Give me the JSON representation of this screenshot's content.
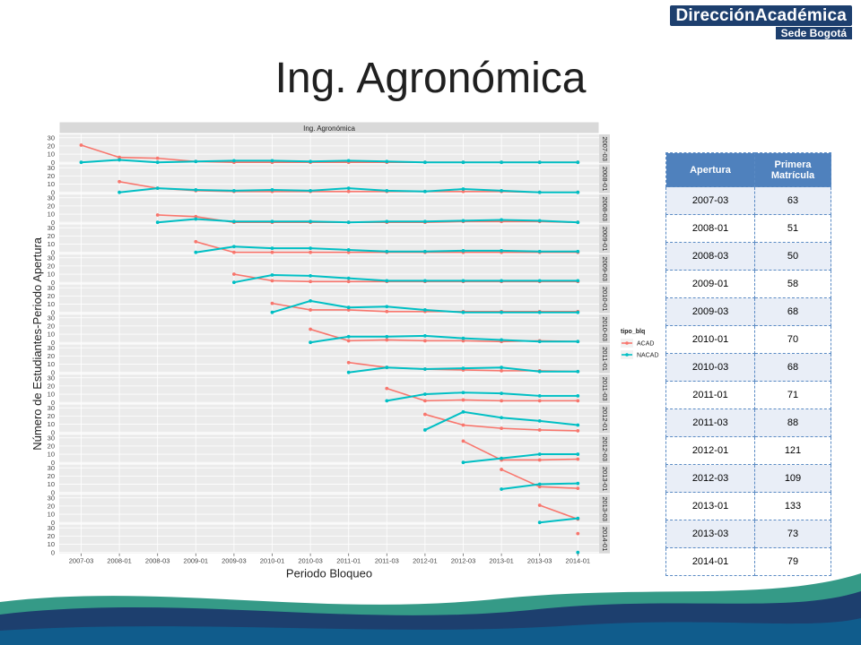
{
  "brand": {
    "name": "DirecciónAcadémica",
    "sub": "Sede Bogotá"
  },
  "slide_title": "Ing. Agronómica",
  "table": {
    "headers": [
      "Apertura",
      "Primera Matrícula"
    ],
    "rows": [
      [
        "2007-03",
        "63"
      ],
      [
        "2008-01",
        "51"
      ],
      [
        "2008-03",
        "50"
      ],
      [
        "2009-01",
        "58"
      ],
      [
        "2009-03",
        "68"
      ],
      [
        "2010-01",
        "70"
      ],
      [
        "2010-03",
        "68"
      ],
      [
        "2011-01",
        "71"
      ],
      [
        "2011-03",
        "88"
      ],
      [
        "2012-01",
        "121"
      ],
      [
        "2012-03",
        "109"
      ],
      [
        "2013-01",
        "133"
      ],
      [
        "2013-03",
        "73"
      ],
      [
        "2014-01",
        "79"
      ]
    ]
  },
  "colors": {
    "acad": "#f8766d",
    "nacad": "#00bfc4",
    "header": "#4f81bd",
    "brand": "#1d3f6e"
  },
  "chart_data": {
    "type": "line",
    "title": "Ing. Agronómica",
    "xlabel": "Periodo Bloqueo",
    "ylabel": "Número de Estudiantes-Periodo Apertura",
    "x": [
      "2007-03",
      "2008-01",
      "2008-03",
      "2009-01",
      "2009-03",
      "2010-01",
      "2010-03",
      "2011-01",
      "2011-03",
      "2012-01",
      "2012-03",
      "2013-01",
      "2013-03",
      "2014-01"
    ],
    "yticks": [
      0,
      10,
      20,
      30
    ],
    "ylim": [
      0,
      33
    ],
    "legend": {
      "title": "tipo_blq",
      "entries": [
        "ACAD",
        "NACAD"
      ],
      "placement": "right"
    },
    "grid": true,
    "panels": [
      {
        "label": "2007-03",
        "start": 0,
        "ACAD": [
          21,
          6,
          5,
          1,
          0,
          0,
          0,
          0,
          0,
          0,
          0,
          0,
          0,
          0
        ],
        "NACAD": [
          0,
          3,
          0,
          1,
          2,
          2,
          1,
          2,
          1,
          0,
          0,
          0,
          0,
          0
        ]
      },
      {
        "label": "2008-01",
        "start": 1,
        "ACAD": [
          13,
          5,
          2,
          1,
          1,
          1,
          1,
          1,
          1,
          1,
          1,
          0,
          0
        ],
        "NACAD": [
          0,
          5,
          3,
          2,
          3,
          2,
          5,
          2,
          1,
          4,
          2,
          0,
          0
        ]
      },
      {
        "label": "2008-03",
        "start": 2,
        "ACAD": [
          9,
          7,
          0,
          0,
          0,
          0,
          0,
          0,
          1,
          1,
          1,
          0
        ],
        "NACAD": [
          0,
          4,
          1,
          1,
          1,
          0,
          1,
          1,
          2,
          3,
          2,
          0
        ]
      },
      {
        "label": "2009-01",
        "start": 3,
        "ACAD": [
          13,
          0,
          0,
          0,
          0,
          0,
          0,
          0,
          0,
          0,
          0
        ],
        "NACAD": [
          0,
          7,
          5,
          5,
          3,
          1,
          1,
          2,
          2,
          1,
          1
        ]
      },
      {
        "label": "2009-03",
        "start": 4,
        "ACAD": [
          10,
          2,
          1,
          1,
          1,
          1,
          1,
          1,
          1,
          1
        ],
        "NACAD": [
          0,
          9,
          8,
          5,
          2,
          2,
          2,
          2,
          2,
          2
        ]
      },
      {
        "label": "2010-01",
        "start": 5,
        "ACAD": [
          11,
          3,
          3,
          1,
          1,
          1,
          1,
          1,
          1
        ],
        "NACAD": [
          0,
          14,
          6,
          7,
          3,
          0,
          0,
          0,
          0
        ]
      },
      {
        "label": "2010-03",
        "start": 6,
        "ACAD": [
          16,
          2,
          3,
          2,
          2,
          1,
          2,
          1
        ],
        "NACAD": [
          0,
          7,
          7,
          8,
          5,
          3,
          1,
          1
        ]
      },
      {
        "label": "2011-01",
        "start": 7,
        "ACAD": [
          12,
          6,
          4,
          3,
          2,
          2,
          1
        ],
        "NACAD": [
          0,
          6,
          4,
          5,
          6,
          1,
          1
        ]
      },
      {
        "label": "2011-03",
        "start": 8,
        "ACAD": [
          17,
          2,
          3,
          2,
          2,
          2
        ],
        "NACAD": [
          2,
          10,
          12,
          11,
          8,
          8
        ]
      },
      {
        "label": "2012-01",
        "start": 9,
        "ACAD": [
          22,
          9,
          5,
          3,
          2
        ],
        "NACAD": [
          3,
          25,
          18,
          14,
          9
        ]
      },
      {
        "label": "2012-03",
        "start": 10,
        "ACAD": [
          26,
          3,
          3,
          4
        ],
        "NACAD": [
          0,
          5,
          10,
          10
        ]
      },
      {
        "label": "2013-01",
        "start": 11,
        "ACAD": [
          28,
          7,
          5
        ],
        "NACAD": [
          4,
          10,
          11
        ]
      },
      {
        "label": "2013-03",
        "start": 12,
        "ACAD": [
          21,
          4
        ],
        "NACAD": [
          0,
          5
        ]
      },
      {
        "label": "2014-01",
        "start": 13,
        "ACAD": [
          23
        ],
        "NACAD": [
          0
        ]
      }
    ]
  }
}
